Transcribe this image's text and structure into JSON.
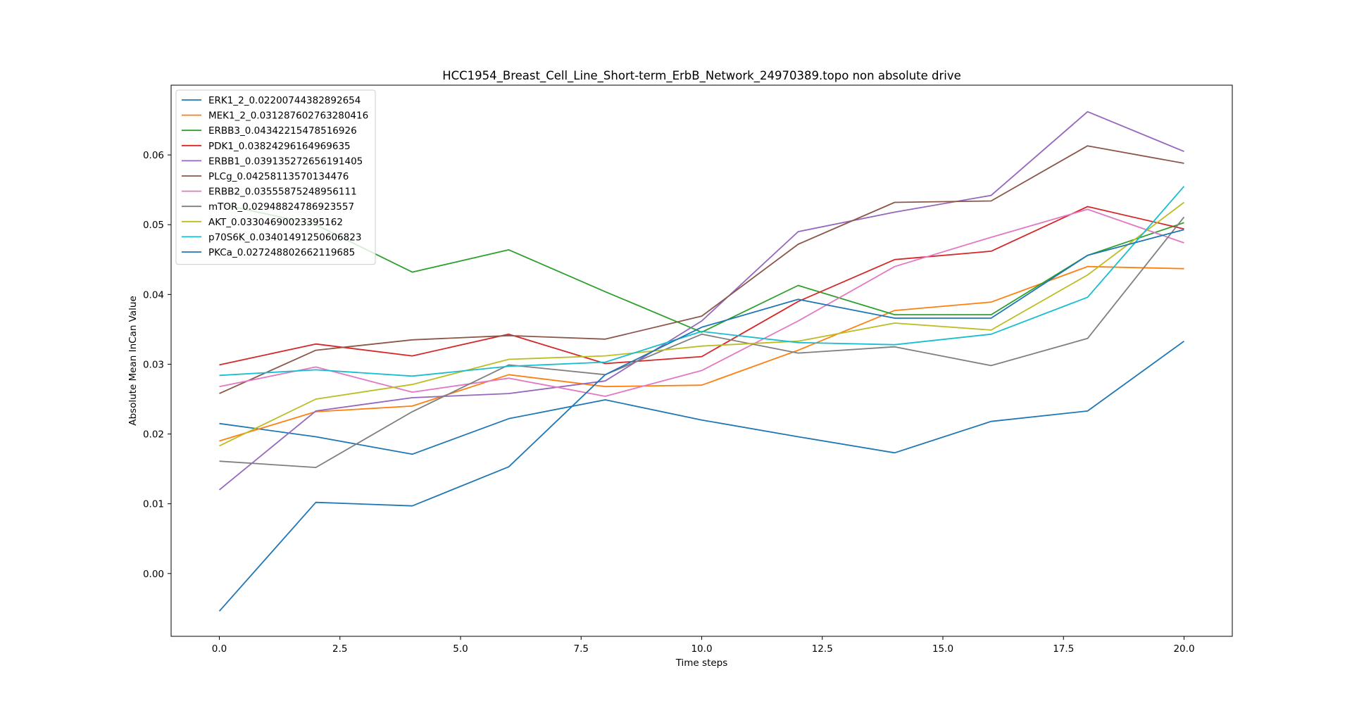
{
  "chart_data": {
    "type": "line",
    "title": "HCC1954_Breast_Cell_Line_Short-term_ErbB_Network_24970389.topo non absolute drive",
    "xlabel": "Time steps",
    "ylabel": "Absolute Mean InCan Value",
    "xlim": [
      -1.0,
      21.0
    ],
    "ylim": [
      -0.009,
      0.07
    ],
    "xticks": [
      0.0,
      2.5,
      5.0,
      7.5,
      10.0,
      12.5,
      15.0,
      17.5,
      20.0
    ],
    "xtick_labels": [
      "0.0",
      "2.5",
      "5.0",
      "7.5",
      "10.0",
      "12.5",
      "15.0",
      "17.5",
      "20.0"
    ],
    "yticks": [
      0.0,
      0.01,
      0.02,
      0.03,
      0.04,
      0.05,
      0.06
    ],
    "ytick_labels": [
      "0.00",
      "0.01",
      "0.02",
      "0.03",
      "0.04",
      "0.05",
      "0.06"
    ],
    "grid": false,
    "legend_position": "upper-left",
    "x": [
      0,
      2,
      4,
      6,
      8,
      10,
      12,
      14,
      16,
      18,
      20
    ],
    "series": [
      {
        "name": "ERK1_2_0.02200744382892654",
        "color": "#1f77b4",
        "values": [
          0.0215,
          0.0196,
          0.0171,
          0.0222,
          0.0249,
          0.022,
          0.0196,
          0.0173,
          0.0218,
          0.0233,
          0.0333
        ]
      },
      {
        "name": "MEK1_2_0.031287602763280416",
        "color": "#ff7f0e",
        "values": [
          0.019,
          0.0232,
          0.024,
          0.0285,
          0.0268,
          0.027,
          0.032,
          0.0377,
          0.0389,
          0.044,
          0.0437
        ]
      },
      {
        "name": "ERBB3_0.04342215478516926",
        "color": "#2ca02c",
        "values": [
          0.053,
          0.05,
          0.0432,
          0.0464,
          0.0404,
          0.0346,
          0.0413,
          0.0371,
          0.0371,
          0.0456,
          0.0503
        ]
      },
      {
        "name": "PDK1_0.03824296164969635",
        "color": "#d62728",
        "values": [
          0.0299,
          0.0329,
          0.0312,
          0.0343,
          0.0301,
          0.0311,
          0.039,
          0.045,
          0.0462,
          0.0526,
          0.0494
        ]
      },
      {
        "name": "ERBB1_0.039135272656191405",
        "color": "#9467bd",
        "values": [
          0.012,
          0.0233,
          0.0252,
          0.0258,
          0.0276,
          0.0362,
          0.049,
          0.0518,
          0.0542,
          0.0662,
          0.0605
        ]
      },
      {
        "name": "PLCg_0.04258113570134476",
        "color": "#8c564b",
        "values": [
          0.0258,
          0.032,
          0.0335,
          0.0341,
          0.0336,
          0.0369,
          0.0472,
          0.0532,
          0.0534,
          0.0613,
          0.0588
        ]
      },
      {
        "name": "ERBB2_0.03555875248956111",
        "color": "#e377c2",
        "values": [
          0.0268,
          0.0296,
          0.026,
          0.028,
          0.0254,
          0.0291,
          0.0362,
          0.044,
          0.0482,
          0.0522,
          0.0474
        ]
      },
      {
        "name": "mTOR_0.02948824786923557",
        "color": "#7f7f7f",
        "values": [
          0.0161,
          0.0152,
          0.0232,
          0.0299,
          0.0285,
          0.0343,
          0.0316,
          0.0325,
          0.0298,
          0.0337,
          0.0511
        ]
      },
      {
        "name": "AKT_0.03304690023395162",
        "color": "#bcbd22",
        "values": [
          0.0183,
          0.025,
          0.0271,
          0.0307,
          0.0312,
          0.0326,
          0.0333,
          0.0359,
          0.0349,
          0.0428,
          0.0532
        ]
      },
      {
        "name": "p70S6K_0.03401491250606823",
        "color": "#17becf",
        "values": [
          0.0284,
          0.0292,
          0.0283,
          0.0297,
          0.0303,
          0.0347,
          0.0331,
          0.0328,
          0.0343,
          0.0396,
          0.0555
        ]
      },
      {
        "name": "PKCa_0.027248802662119685",
        "color": "#1f77b4",
        "values": [
          -0.0054,
          0.0102,
          0.0097,
          0.0153,
          0.0285,
          0.0353,
          0.0393,
          0.0366,
          0.0366,
          0.0456,
          0.0493
        ]
      }
    ]
  }
}
